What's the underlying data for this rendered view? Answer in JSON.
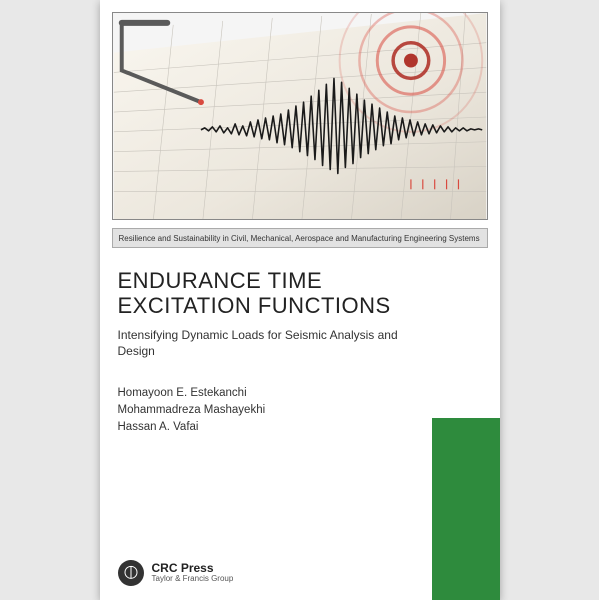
{
  "series_label": "Resilience and Sustainability in Civil, Mechanical, Aerospace and Manufacturing Engineering Systems",
  "title": "ENDURANCE TIME EXCITATION FUNCTIONS",
  "subtitle": "Intensifying Dynamic Loads for Seismic Analysis and Design",
  "authors": {
    "a1": "Homayoon E. Estekanchi",
    "a2": "Mohammadreza Mashayekhi",
    "a3": "Hassan A. Vafai"
  },
  "publisher": {
    "main": "CRC Press",
    "sub": "Taylor & Francis Group"
  },
  "colors": {
    "spine": "#2e8b3d",
    "cover_bg": "#ffffff",
    "page_bg": "#e8e8e8",
    "red_accent": "#d94a3f",
    "dark_red": "#b0352c",
    "seismo_line": "#1a1a1a",
    "grid_line": "#c8c4bc"
  },
  "hero_image": {
    "type": "infographic",
    "description": "seismograph stylus drawing a waveform on chart paper with concentric epicenter rings",
    "background_color": "#f0ece4",
    "grid_color": "#c8c4bc",
    "waveform_color": "#1a1a1a",
    "ring_color": "#d94a3f",
    "stylus_bracket_color": "#6b6b6b",
    "waveform_points": [
      0,
      2,
      -1,
      3,
      -2,
      4,
      -3,
      2,
      -4,
      6,
      -5,
      4,
      -6,
      8,
      -7,
      10,
      -9,
      12,
      -10,
      14,
      -13,
      16,
      -15,
      20,
      -18,
      24,
      -22,
      28,
      -26,
      34,
      -30,
      40,
      -36,
      46,
      -40,
      52,
      -44,
      48,
      -38,
      42,
      -34,
      36,
      -28,
      30,
      -24,
      26,
      -20,
      22,
      -16,
      18,
      -14,
      14,
      -10,
      12,
      -8,
      10,
      -6,
      8,
      -5,
      6,
      -4,
      5,
      -3,
      4,
      -2,
      3,
      -2,
      2,
      -1,
      2,
      -1,
      1,
      0,
      1,
      0
    ],
    "rings": [
      {
        "r": 18,
        "opacity": 0.9
      },
      {
        "r": 34,
        "opacity": 0.55
      },
      {
        "r": 52,
        "opacity": 0.35
      },
      {
        "r": 72,
        "opacity": 0.2
      }
    ]
  }
}
